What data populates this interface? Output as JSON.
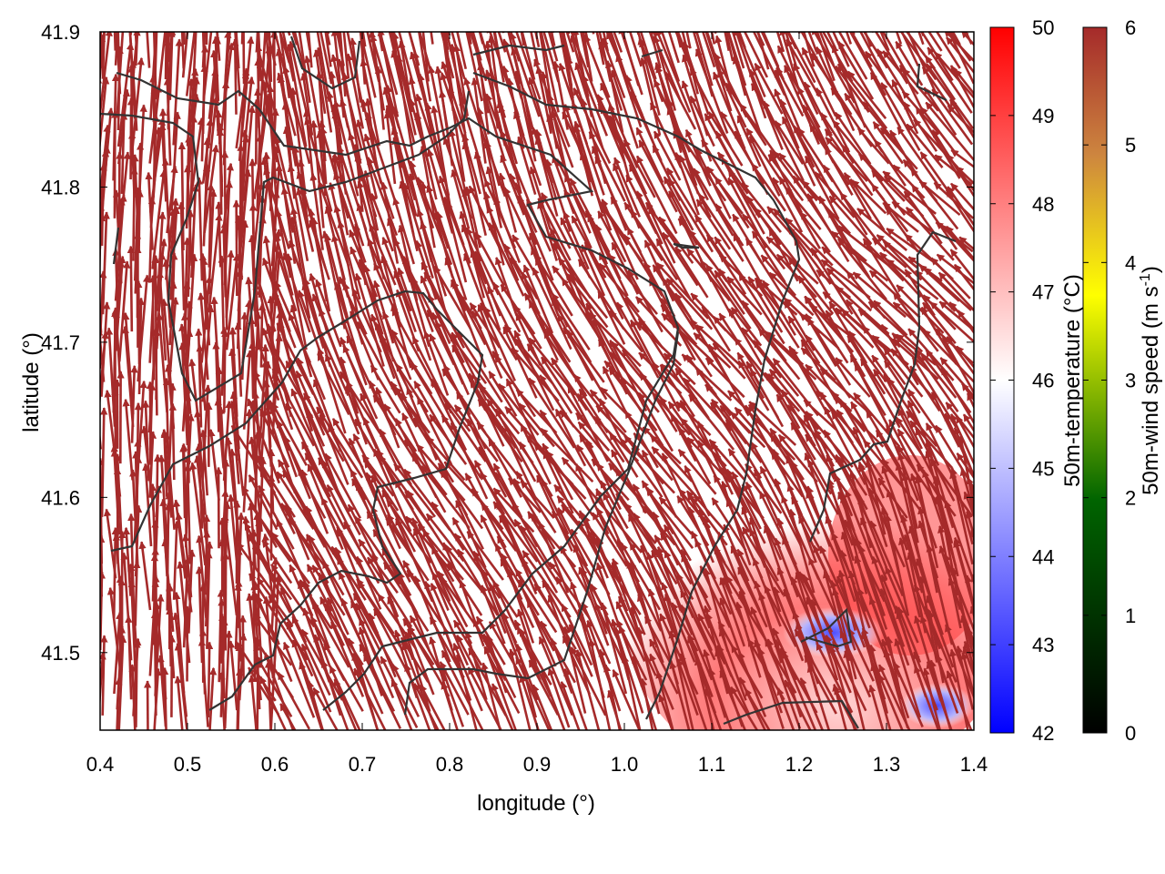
{
  "chart_data": {
    "type": "heatmap",
    "title": "",
    "xlabel": "longitude (°)",
    "ylabel": "latitude (°)",
    "xlim": [
      0.4,
      1.4
    ],
    "ylim": [
      41.45,
      41.9
    ],
    "xticks": [
      0.4,
      0.5,
      0.6,
      0.7,
      0.8,
      0.9,
      1.0,
      1.1,
      1.2,
      1.3,
      1.4
    ],
    "xtick_labels": [
      "0.4",
      "0.5",
      "0.6",
      "0.7",
      "0.8",
      "0.9",
      "1.0",
      "1.1",
      "1.2",
      "1.3",
      "1.4"
    ],
    "yticks": [
      41.5,
      41.6,
      41.7,
      41.8,
      41.9
    ],
    "ytick_labels": [
      "41.5",
      "41.6",
      "41.7",
      "41.8",
      "41.9"
    ],
    "grid": false,
    "temperature_colorbar": {
      "label": "50m-temperature (°C)",
      "range": [
        42,
        50
      ],
      "ticks": [
        "42",
        "43",
        "44",
        "45",
        "46",
        "47",
        "48",
        "49",
        "50"
      ],
      "colors": [
        "#0000ff",
        "#ffffff",
        "#ff0000"
      ]
    },
    "wind_colorbar": {
      "label_main": "50m-wind speed (m s",
      "label_sup": "-1",
      "label_end": ")",
      "range": [
        0,
        6
      ],
      "ticks": [
        "0",
        "1",
        "2",
        "3",
        "4",
        "5",
        "6"
      ],
      "colors": [
        "#000000",
        "#006400",
        "#ffff00",
        "#cd853f",
        "#a52a2a"
      ]
    },
    "arrow_color": "#a52a2a",
    "contour_color": "#333333",
    "warm_region": {
      "lon": [
        1.02,
        1.4
      ],
      "lat": [
        41.45,
        41.6
      ],
      "temp_max": 49
    },
    "cool_region": {
      "lon": [
        1.17,
        1.27
      ],
      "lat": [
        41.47,
        41.53
      ],
      "temp_min": 44.5
    }
  }
}
